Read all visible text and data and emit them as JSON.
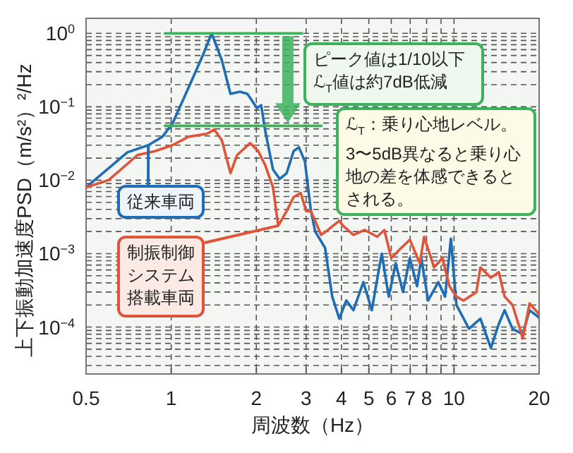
{
  "chart_data": {
    "type": "line",
    "xlabel": "周波数（Hz）",
    "ylabel": "上下振動加速度PSD（m/s²）²/Hz",
    "log": "xy",
    "grid": true,
    "line_style": "solid",
    "marker": "none",
    "xlim": [
      0.5,
      20
    ],
    "ylim": [
      2.3e-05,
      1.6
    ],
    "xticks": [
      0.5,
      1,
      2,
      3,
      4,
      5,
      6,
      7,
      8,
      {
        "value": 9,
        "label": null
      },
      10,
      20
    ],
    "yticks": [
      {
        "value": 3e-05,
        "label": null
      },
      {
        "value": 4e-05,
        "label": null
      },
      {
        "value": 5e-05,
        "label": null
      },
      {
        "value": 6e-05,
        "label": null
      },
      {
        "value": 7e-05,
        "label": null
      },
      {
        "value": 8e-05,
        "label": null
      },
      {
        "value": 9e-05,
        "label": null
      },
      {
        "value": 0.0001,
        "label": "10$^{−4}$"
      },
      {
        "value": 0.0002,
        "label": null
      },
      {
        "value": 0.0003,
        "label": null
      },
      {
        "value": 0.0004,
        "label": null
      },
      {
        "value": 0.0005,
        "label": null
      },
      {
        "value": 0.0006,
        "label": null
      },
      {
        "value": 0.0007,
        "label": null
      },
      {
        "value": 0.0008,
        "label": null
      },
      {
        "value": 0.0009,
        "label": null
      },
      {
        "value": 0.001,
        "label": "10$^{−3}$"
      },
      {
        "value": 0.002,
        "label": null
      },
      {
        "value": 0.003,
        "label": null
      },
      {
        "value": 0.004,
        "label": null
      },
      {
        "value": 0.005,
        "label": null
      },
      {
        "value": 0.006,
        "label": null
      },
      {
        "value": 0.007,
        "label": null
      },
      {
        "value": 0.008,
        "label": null
      },
      {
        "value": 0.009,
        "label": null
      },
      {
        "value": 0.01,
        "label": "10$^{−2}$"
      },
      {
        "value": 0.02,
        "label": null
      },
      {
        "value": 0.03,
        "label": null
      },
      {
        "value": 0.04,
        "label": null
      },
      {
        "value": 0.05,
        "label": null
      },
      {
        "value": 0.06,
        "label": null
      },
      {
        "value": 0.07,
        "label": null
      },
      {
        "value": 0.08,
        "label": null
      },
      {
        "value": 0.09,
        "label": null
      },
      {
        "value": 0.1,
        "label": "10$^{−1}$"
      },
      {
        "value": 0.2,
        "label": null
      },
      {
        "value": 0.3,
        "label": null
      },
      {
        "value": 0.4,
        "label": null
      },
      {
        "value": 0.5,
        "label": null
      },
      {
        "value": 0.6,
        "label": null
      },
      {
        "value": 0.7,
        "label": null
      },
      {
        "value": 0.8,
        "label": null
      },
      {
        "value": 0.9,
        "label": null
      },
      {
        "value": 1,
        "label": "10$^{0}$"
      }
    ],
    "series": [
      {
        "color": "#1f6db5",
        "x": [
          0.5,
          0.7,
          0.83,
          0.93,
          1.01,
          1.15,
          1.29,
          1.39,
          1.51,
          1.62,
          1.75,
          1.86,
          2.01,
          2.08,
          2.15,
          2.29,
          2.42,
          2.56,
          2.71,
          2.83,
          2.97,
          3.12,
          3.23,
          3.5,
          3.71,
          3.93,
          4.16,
          4.41,
          4.78,
          5.12,
          5.55,
          5.88,
          6.22,
          6.6,
          6.98,
          7.4,
          7.66,
          8.1,
          8.8,
          9.3,
          9.75,
          10.2,
          11.3,
          12.4,
          13.5,
          14.4,
          15.1,
          16.1,
          17.5,
          18.5,
          20
        ],
        "values": [
          0.008,
          0.024,
          0.03,
          0.039,
          0.059,
          0.18,
          0.49,
          1.0,
          0.43,
          0.15,
          0.16,
          0.15,
          0.096,
          0.105,
          0.047,
          0.014,
          0.0104,
          0.0125,
          0.025,
          0.028,
          0.018,
          0.0038,
          0.002,
          0.0012,
          0.00026,
          0.00013,
          0.00023,
          0.00017,
          0.00041,
          0.00017,
          0.001,
          0.00026,
          0.00074,
          0.0003,
          0.00087,
          0.00036,
          0.00087,
          0.00023,
          0.00041,
          0.00026,
          0.0016,
          0.0002,
          9.5e-05,
          0.00013,
          5.2e-05,
          0.00011,
          0.00017,
          9.5e-05,
          8e-05,
          0.00017,
          0.000135
        ]
      },
      {
        "color": "#e0553a",
        "x": [
          0.5,
          0.6,
          0.76,
          0.88,
          1.01,
          1.15,
          1.34,
          1.42,
          1.51,
          1.62,
          1.71,
          1.9,
          2.03,
          2.15,
          2.29,
          2.39,
          2.56,
          2.71,
          2.87,
          3.0,
          3.12,
          3.39,
          3.58,
          3.93,
          4.05,
          4.41,
          4.83,
          5.35,
          5.67,
          6.0,
          6.44,
          6.98,
          7.57,
          7.84,
          8.5,
          9.1,
          9.64,
          10.2,
          10.8,
          12.0,
          12.4,
          13.5,
          14.4,
          15.1,
          16.1,
          17.1,
          17.5,
          18.5,
          20
        ],
        "values": [
          0.008,
          0.01,
          0.022,
          0.025,
          0.03,
          0.039,
          0.043,
          0.049,
          0.035,
          0.0125,
          0.022,
          0.032,
          0.025,
          0.016,
          0.008,
          0.0024,
          0.0038,
          0.0059,
          0.0067,
          0.0038,
          0.0038,
          0.0018,
          0.0021,
          0.0028,
          0.0024,
          0.0018,
          0.0021,
          0.0017,
          0.0021,
          0.00087,
          0.00115,
          0.00155,
          0.00074,
          0.0017,
          0.00065,
          0.00087,
          0.00036,
          0.00026,
          0.00023,
          0.0003,
          0.00065,
          0.00047,
          0.00056,
          0.00026,
          0.0002,
          9.5e-05,
          7e-05,
          0.00021,
          0.00015
        ]
      },
      {
        "color": "#3cb35a",
        "x": [
          0.95,
          2.9
        ],
        "values": [
          1.0,
          1.0
        ]
      },
      {
        "color": "#3cb35a",
        "x": [
          0.95,
          3.4
        ],
        "values": [
          0.055,
          0.055
        ]
      }
    ],
    "annotations": [
      {
        "text": "従来車両",
        "x": 0.83,
        "y": 0.03
      },
      {
        "text": "制振制御システム搭載車両",
        "x": 2.39,
        "y": 0.0024
      },
      "ピーク値は1/10以下ℒ$_{T}$値は約7dB低減",
      "ℒ$_{T}$：乗り心地レベル。3〜5dB異なると乗り心地の差を体感できるとされる。"
    ]
  }
}
